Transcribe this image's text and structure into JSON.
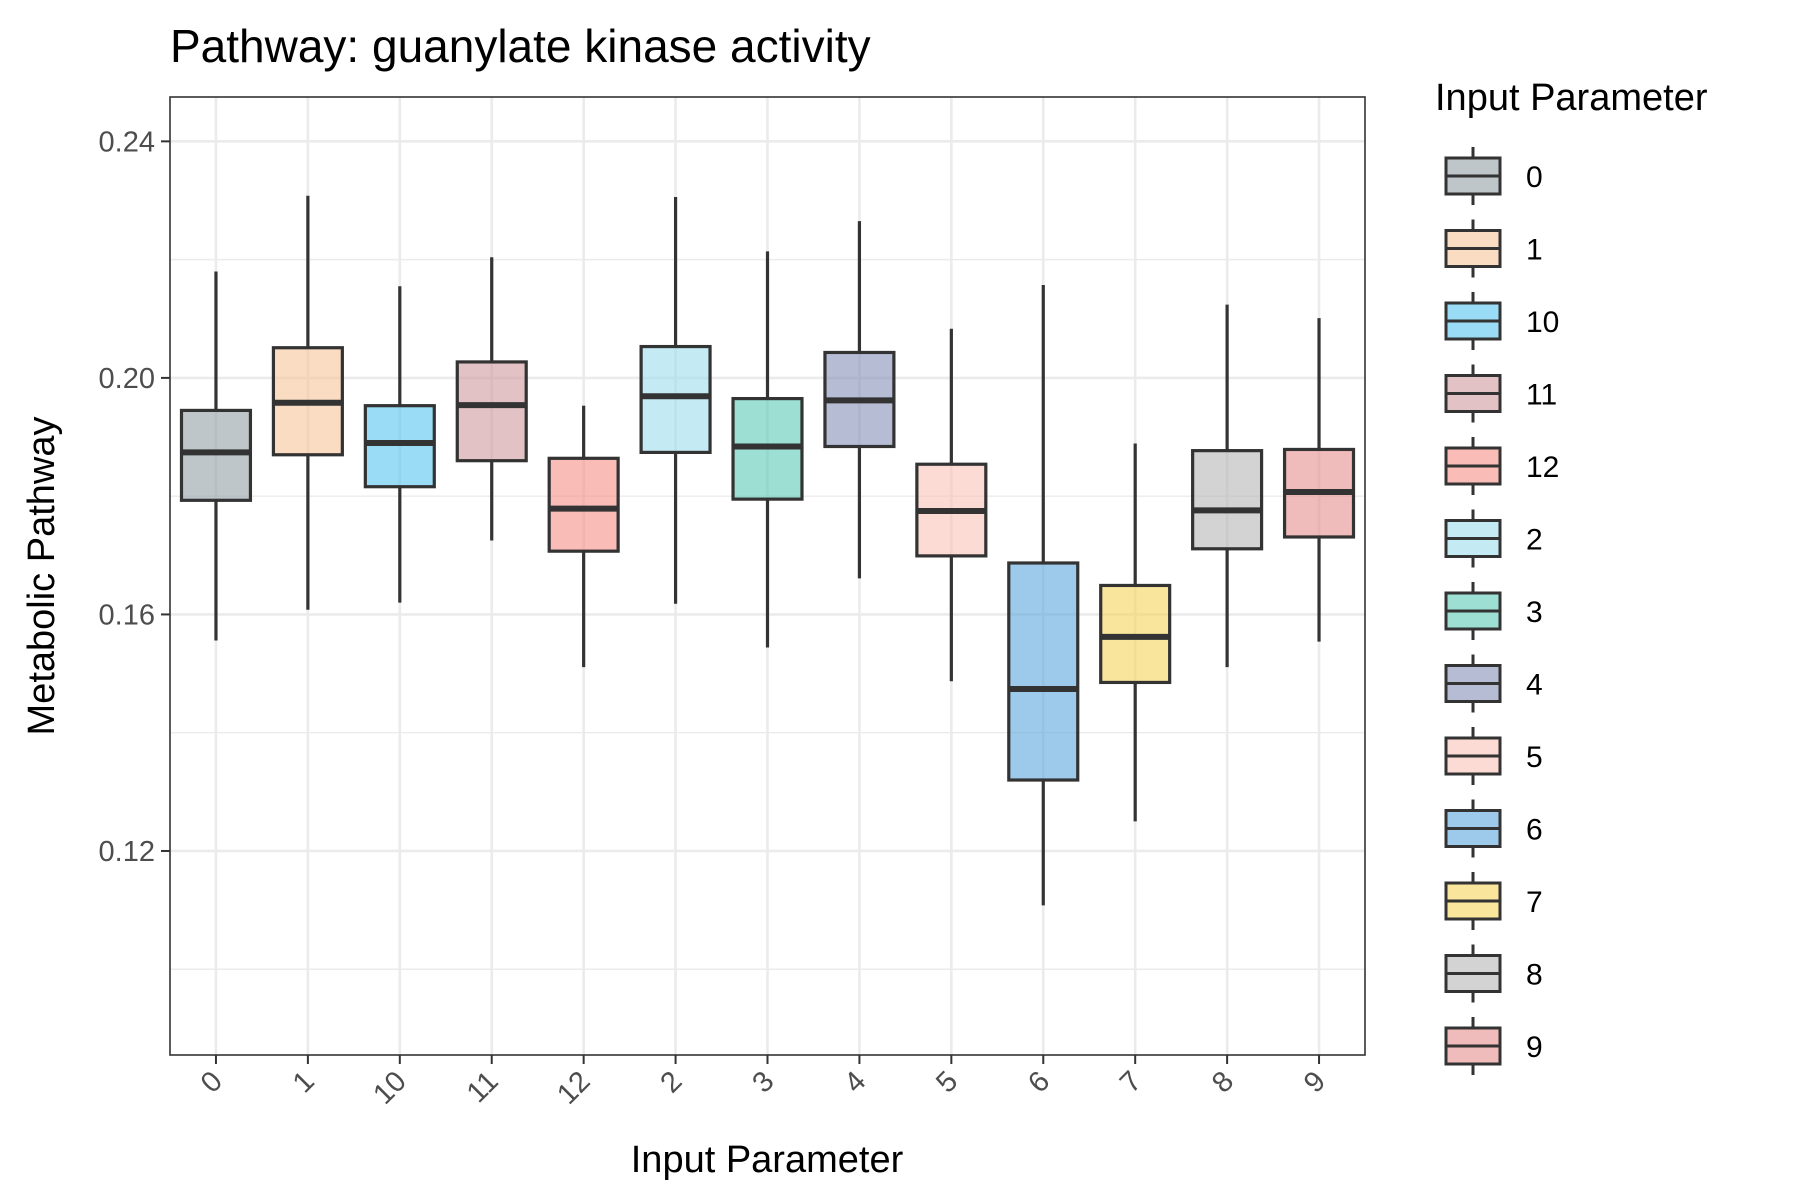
{
  "chart_data": {
    "type": "boxplot",
    "title": "Pathway: guanylate kinase activity",
    "xlabel": "Input Parameter",
    "ylabel": "Metabolic Pathway",
    "ylim": [
      0.0855,
      0.2475
    ],
    "yticks": [
      0.12,
      0.16,
      0.2,
      0.24
    ],
    "ytick_labels": [
      "0.12",
      "0.16",
      "0.20",
      "0.24"
    ],
    "grid": true,
    "legend": {
      "title": "Input Parameter",
      "position": "right"
    },
    "categories": [
      "0",
      "1",
      "10",
      "11",
      "12",
      "2",
      "3",
      "4",
      "5",
      "6",
      "7",
      "8",
      "9"
    ],
    "boxes": [
      {
        "category": "0",
        "color": "#95A0A6",
        "whisker_low": 0.1556,
        "q1": 0.1793,
        "median": 0.1874,
        "q3": 0.1945,
        "whisker_high": 0.218
      },
      {
        "category": "1",
        "color": "#F5C597",
        "whisker_low": 0.1608,
        "q1": 0.187,
        "median": 0.1958,
        "q3": 0.2051,
        "whisker_high": 0.2308
      },
      {
        "category": "10",
        "color": "#56C4EE",
        "whisker_low": 0.162,
        "q1": 0.1816,
        "median": 0.189,
        "q3": 0.1953,
        "whisker_high": 0.2155
      },
      {
        "category": "11",
        "color": "#D19A9F",
        "whisker_low": 0.1725,
        "q1": 0.186,
        "median": 0.1954,
        "q3": 0.2027,
        "whisker_high": 0.2204
      },
      {
        "category": "12",
        "color": "#F68F85",
        "whisker_low": 0.1511,
        "q1": 0.1707,
        "median": 0.1779,
        "q3": 0.1864,
        "whisker_high": 0.1953
      },
      {
        "category": "2",
        "color": "#9CDCEC",
        "whisker_low": 0.1618,
        "q1": 0.1874,
        "median": 0.1969,
        "q3": 0.2053,
        "whisker_high": 0.2306
      },
      {
        "category": "3",
        "color": "#5BC9B5",
        "whisker_low": 0.1544,
        "q1": 0.1795,
        "median": 0.1884,
        "q3": 0.1965,
        "whisker_high": 0.2214
      },
      {
        "category": "4",
        "color": "#8390B5",
        "whisker_low": 0.1661,
        "q1": 0.1884,
        "median": 0.1962,
        "q3": 0.2043,
        "whisker_high": 0.2265
      },
      {
        "category": "5",
        "color": "#F8C3B6",
        "whisker_low": 0.1487,
        "q1": 0.1699,
        "median": 0.1775,
        "q3": 0.1854,
        "whisker_high": 0.2083
      },
      {
        "category": "6",
        "color": "#5CA7DD",
        "whisker_low": 0.1108,
        "q1": 0.132,
        "median": 0.1474,
        "q3": 0.1687,
        "whisker_high": 0.2157
      },
      {
        "category": "7",
        "color": "#F6D35C",
        "whisker_low": 0.125,
        "q1": 0.1485,
        "median": 0.1562,
        "q3": 0.1649,
        "whisker_high": 0.1889
      },
      {
        "category": "8",
        "color": "#B6B6B6",
        "whisker_low": 0.1511,
        "q1": 0.1711,
        "median": 0.1776,
        "q3": 0.1877,
        "whisker_high": 0.2124
      },
      {
        "category": "9",
        "color": "#E68E8E",
        "whisker_low": 0.1554,
        "q1": 0.1731,
        "median": 0.1807,
        "q3": 0.1879,
        "whisker_high": 0.2101
      }
    ]
  }
}
